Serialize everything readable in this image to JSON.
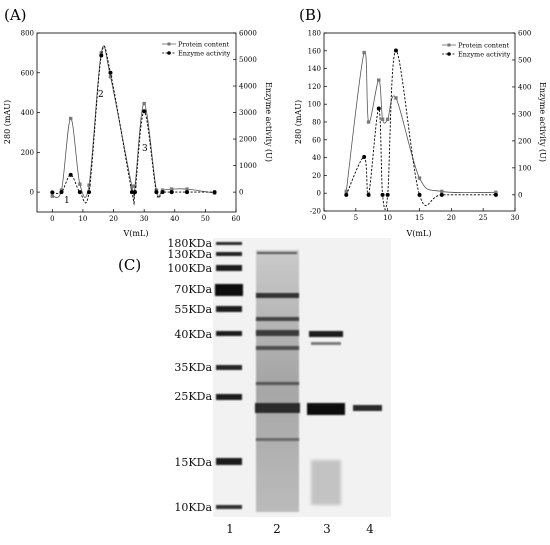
{
  "chart_data": [
    {
      "panel_label": "(A)",
      "type": "line",
      "xlabel": "V(mL)",
      "ylabel": "280 (mAU)",
      "y2label": "Enzyme activity (U)",
      "xlim": [
        -5,
        60
      ],
      "ylim": [
        -100,
        800
      ],
      "y2lim": [
        -750,
        6000
      ],
      "xticks": [
        0,
        10,
        20,
        30,
        40,
        50,
        60
      ],
      "yticks": [
        0,
        200,
        400,
        600,
        800
      ],
      "y2ticks": [
        0,
        1000,
        2000,
        3000,
        4000,
        5000,
        6000
      ],
      "legend_position": "top-right",
      "series": [
        {
          "name": "Protein content",
          "axis": "left",
          "style": "solid-square",
          "x": [
            0,
            3,
            6,
            9,
            12,
            16,
            19,
            26,
            27,
            30,
            34,
            36,
            39,
            44,
            53
          ],
          "y": [
            -20,
            10,
            370,
            40,
            35,
            700,
            580,
            30,
            30,
            445,
            10,
            10,
            15,
            15,
            -5
          ]
        },
        {
          "name": "Enzyme activity",
          "axis": "right",
          "style": "dashed-circle",
          "x": [
            0,
            3,
            6,
            9,
            12,
            16,
            19,
            26,
            27,
            30,
            34,
            36,
            39,
            44,
            53
          ],
          "y": [
            -10,
            0,
            650,
            0,
            0,
            5150,
            4500,
            0,
            0,
            3050,
            0,
            0,
            0,
            0,
            0
          ]
        }
      ],
      "annotations": [
        "1",
        "2",
        "3"
      ]
    },
    {
      "panel_label": "(B)",
      "type": "line",
      "xlabel": "V(mL)",
      "ylabel": "280 (mAU)",
      "y2label": "Enzyme activity (U)",
      "xlim": [
        0,
        30
      ],
      "ylim": [
        -20,
        180
      ],
      "y2lim": [
        -60,
        600
      ],
      "xticks": [
        0,
        5,
        10,
        15,
        20,
        25,
        30
      ],
      "yticks": [
        -20,
        0,
        20,
        40,
        60,
        80,
        100,
        120,
        140,
        160,
        180
      ],
      "y2ticks": [
        0,
        100,
        200,
        300,
        400,
        500,
        600
      ],
      "legend_position": "top-right",
      "series": [
        {
          "name": "Protein content",
          "axis": "left",
          "style": "solid-square",
          "x": [
            3.5,
            6.3,
            7,
            8.6,
            9.2,
            10,
            11.3,
            15,
            18.5,
            27
          ],
          "y": [
            2,
            158,
            80,
            127,
            83,
            83,
            107,
            17,
            2,
            1
          ]
        },
        {
          "name": "Enzyme activity",
          "axis": "right",
          "style": "dashed-circle",
          "x": [
            3.5,
            6.3,
            7,
            8.6,
            9.2,
            10,
            11.3,
            15,
            18.5,
            27
          ],
          "y": [
            0,
            140,
            0,
            320,
            0,
            0,
            535,
            0,
            0,
            0
          ]
        }
      ]
    }
  ],
  "gel": {
    "panel_label": "(C)",
    "markers": [
      "180KDa",
      "130KDa",
      "100KDa",
      "70KDa",
      "55KDa",
      "40KDa",
      "35KDa",
      "25KDa",
      "15KDa",
      "10KDa"
    ],
    "lanes": [
      "1",
      "2",
      "3",
      "4"
    ]
  }
}
